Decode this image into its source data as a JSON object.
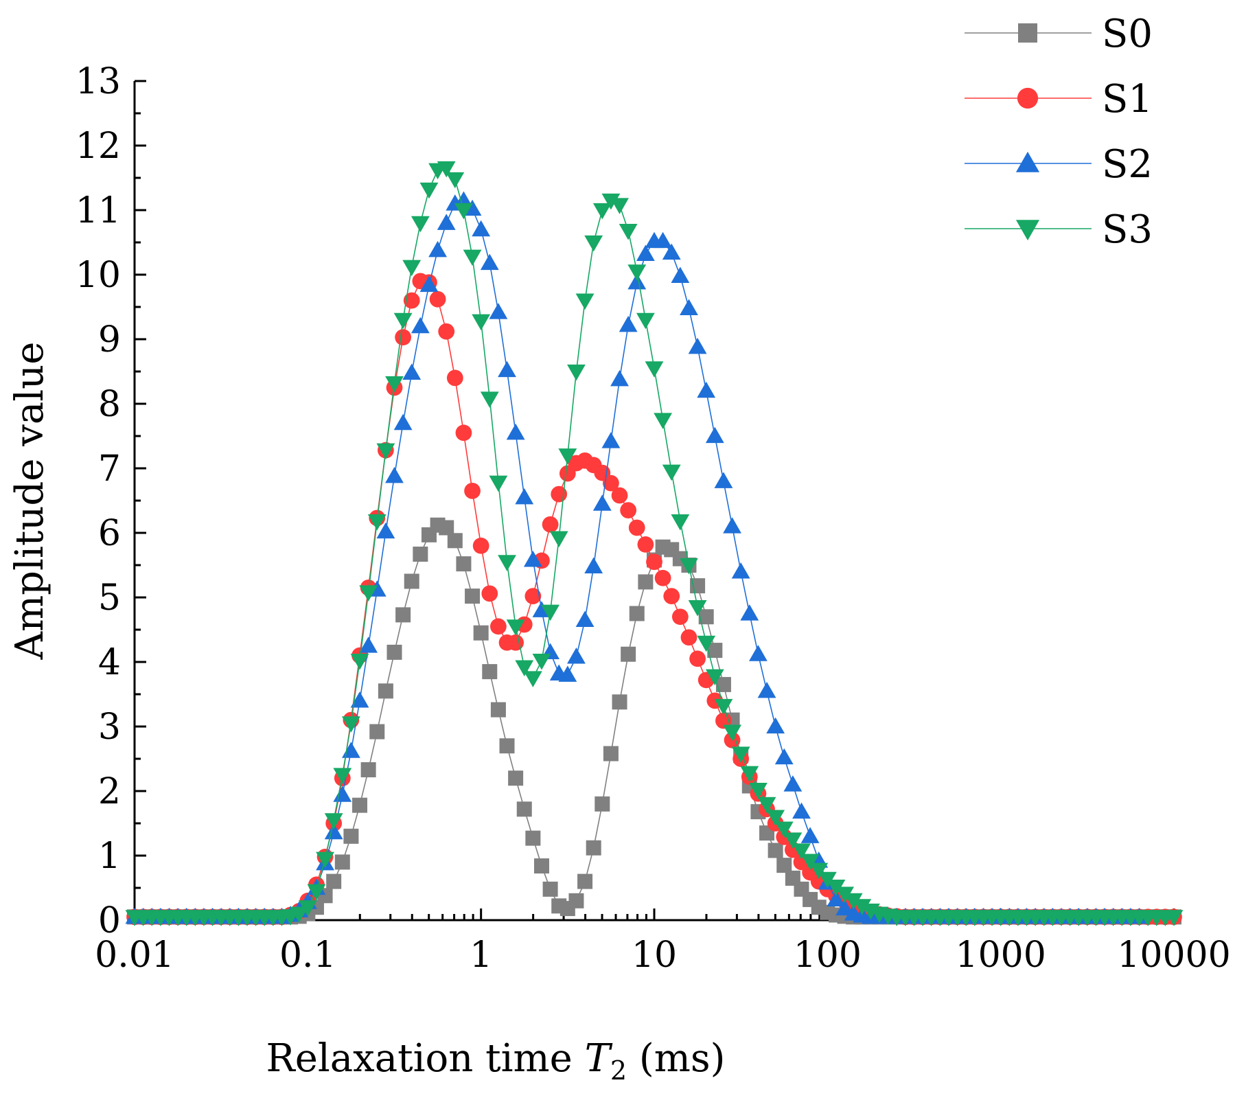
{
  "chart_data": {
    "type": "scatter",
    "x_scale": "log",
    "title": "",
    "xlabel": {
      "main": "Relaxation time ",
      "italic": "T",
      "subscript": "2",
      "unit": " (ms)"
    },
    "ylabel": "Amplitude value",
    "xlim": [
      0.01,
      10000
    ],
    "ylim": [
      0,
      13
    ],
    "x_ticks": [
      {
        "value": 0.01,
        "label": "0.01"
      },
      {
        "value": 0.1,
        "label": "0.1"
      },
      {
        "value": 1,
        "label": "1"
      },
      {
        "value": 10,
        "label": "10"
      },
      {
        "value": 100,
        "label": "100"
      },
      {
        "value": 1000,
        "label": "1000"
      },
      {
        "value": 10000,
        "label": "10000"
      }
    ],
    "y_ticks": [
      {
        "value": 0,
        "label": "0"
      },
      {
        "value": 1,
        "label": "1"
      },
      {
        "value": 2,
        "label": "2"
      },
      {
        "value": 3,
        "label": "3"
      },
      {
        "value": 4,
        "label": "4"
      },
      {
        "value": 5,
        "label": "5"
      },
      {
        "value": 6,
        "label": "6"
      },
      {
        "value": 7,
        "label": "7"
      },
      {
        "value": 8,
        "label": "8"
      },
      {
        "value": 9,
        "label": "9"
      },
      {
        "value": 10,
        "label": "10"
      },
      {
        "value": 11,
        "label": "11"
      },
      {
        "value": 12,
        "label": "12"
      },
      {
        "value": 13,
        "label": "13"
      }
    ],
    "grid": false,
    "legend_position": "top-right",
    "x_log_start": -2,
    "x_log_step": 0.05,
    "series": [
      {
        "name": "S0",
        "color": "#808080",
        "marker": "square",
        "values": [
          0.05,
          0.05,
          0.05,
          0.05,
          0.05,
          0.05,
          0.05,
          0.05,
          0.05,
          0.05,
          0.05,
          0.05,
          0.05,
          0.05,
          0.05,
          0.05,
          0.05,
          0.05,
          0.05,
          0.06,
          0.1,
          0.2,
          0.38,
          0.6,
          0.9,
          1.3,
          1.78,
          2.33,
          2.92,
          3.55,
          4.15,
          4.73,
          5.25,
          5.67,
          5.97,
          6.12,
          6.08,
          5.88,
          5.52,
          5.02,
          4.45,
          3.85,
          3.26,
          2.7,
          2.2,
          1.72,
          1.27,
          0.84,
          0.48,
          0.22,
          0.18,
          0.3,
          0.6,
          1.12,
          1.8,
          2.58,
          3.38,
          4.12,
          4.75,
          5.24,
          5.58,
          5.78,
          5.74,
          5.6,
          5.5,
          5.18,
          4.7,
          4.18,
          3.65,
          3.1,
          2.55,
          2.08,
          1.68,
          1.35,
          1.08,
          0.85,
          0.65,
          0.48,
          0.32,
          0.2,
          0.12,
          0.08,
          0.06,
          0.05,
          0.05,
          0.05,
          0.05,
          0.05,
          0.05,
          0.05,
          0.05,
          0.05,
          0.05,
          0.05,
          0.05,
          0.05,
          0.05,
          0.05,
          0.05,
          0.05,
          0.05,
          0.05,
          0.05,
          0.05,
          0.05,
          0.05,
          0.05,
          0.05,
          0.05,
          0.05,
          0.05,
          0.05,
          0.05,
          0.05,
          0.05,
          0.05,
          0.05,
          0.05,
          0.05,
          0.05,
          0.05
        ]
      },
      {
        "name": "S1",
        "color": "#ff3b3b",
        "marker": "circle",
        "values": [
          0.05,
          0.05,
          0.05,
          0.05,
          0.05,
          0.05,
          0.05,
          0.05,
          0.05,
          0.05,
          0.05,
          0.05,
          0.05,
          0.05,
          0.05,
          0.05,
          0.05,
          0.05,
          0.08,
          0.14,
          0.3,
          0.55,
          0.98,
          1.5,
          2.2,
          3.1,
          4.1,
          5.15,
          6.23,
          7.28,
          8.25,
          9.03,
          9.6,
          9.9,
          9.88,
          9.62,
          9.12,
          8.4,
          7.55,
          6.65,
          5.8,
          5.06,
          4.55,
          4.3,
          4.3,
          4.58,
          5.02,
          5.57,
          6.13,
          6.6,
          6.92,
          7.08,
          7.12,
          7.05,
          6.93,
          6.77,
          6.58,
          6.35,
          6.08,
          5.82,
          5.55,
          5.3,
          5.02,
          4.7,
          4.38,
          4.05,
          3.72,
          3.4,
          3.09,
          2.79,
          2.5,
          2.22,
          1.96,
          1.72,
          1.5,
          1.29,
          1.09,
          0.9,
          0.74,
          0.6,
          0.48,
          0.38,
          0.3,
          0.23,
          0.17,
          0.12,
          0.09,
          0.07,
          0.06,
          0.05,
          0.05,
          0.05,
          0.05,
          0.05,
          0.05,
          0.05,
          0.05,
          0.05,
          0.05,
          0.05,
          0.05,
          0.05,
          0.05,
          0.05,
          0.05,
          0.05,
          0.05,
          0.05,
          0.05,
          0.05,
          0.05,
          0.05,
          0.05,
          0.05,
          0.05,
          0.05,
          0.05,
          0.05,
          0.05,
          0.05,
          0.05
        ]
      },
      {
        "name": "S2",
        "color": "#1f6fd8",
        "marker": "triangle-up",
        "values": [
          0.05,
          0.05,
          0.05,
          0.05,
          0.05,
          0.05,
          0.05,
          0.05,
          0.05,
          0.05,
          0.05,
          0.05,
          0.05,
          0.05,
          0.05,
          0.05,
          0.05,
          0.05,
          0.08,
          0.15,
          0.28,
          0.5,
          0.88,
          1.36,
          1.94,
          2.62,
          3.4,
          4.25,
          5.12,
          6.02,
          6.88,
          7.7,
          8.48,
          9.2,
          9.84,
          10.38,
          10.8,
          11.1,
          11.15,
          11.02,
          10.7,
          10.18,
          9.42,
          8.52,
          7.55,
          6.55,
          5.58,
          4.8,
          4.15,
          3.82,
          3.8,
          4.08,
          4.65,
          5.48,
          6.45,
          7.42,
          8.38,
          9.22,
          9.88,
          10.32,
          10.52,
          10.52,
          10.34,
          9.98,
          9.48,
          8.88,
          8.2,
          7.5,
          6.8,
          6.1,
          5.4,
          4.75,
          4.12,
          3.55,
          3.0,
          2.52,
          2.1,
          1.68,
          1.3,
          0.92,
          0.58,
          0.32,
          0.18,
          0.1,
          0.07,
          0.05,
          0.05,
          0.05,
          0.05,
          0.05,
          0.05,
          0.05,
          0.05,
          0.05,
          0.05,
          0.05,
          0.05,
          0.05,
          0.05,
          0.05,
          0.05,
          0.05,
          0.05,
          0.05,
          0.05,
          0.05,
          0.05,
          0.05,
          0.05,
          0.05,
          0.05,
          0.05,
          0.05,
          0.05,
          0.05,
          0.05,
          0.05
        ]
      },
      {
        "name": "S3",
        "color": "#16a864",
        "marker": "triangle-down",
        "values": [
          0.05,
          0.05,
          0.05,
          0.05,
          0.05,
          0.05,
          0.05,
          0.05,
          0.05,
          0.05,
          0.05,
          0.05,
          0.05,
          0.05,
          0.05,
          0.05,
          0.05,
          0.05,
          0.06,
          0.1,
          0.2,
          0.45,
          0.95,
          1.55,
          2.25,
          3.05,
          4.02,
          5.08,
          6.18,
          7.28,
          8.32,
          9.3,
          10.12,
          10.8,
          11.32,
          11.62,
          11.65,
          11.48,
          11.0,
          10.28,
          9.28,
          8.08,
          6.78,
          5.55,
          4.55,
          3.92,
          3.75,
          4.02,
          4.78,
          5.92,
          7.2,
          8.5,
          9.6,
          10.5,
          11.0,
          11.15,
          11.08,
          10.68,
          10.05,
          9.3,
          8.55,
          7.75,
          6.95,
          6.18,
          5.5,
          4.85,
          4.3,
          3.78,
          3.32,
          2.92,
          2.58,
          2.28,
          2.02,
          1.8,
          1.6,
          1.42,
          1.25,
          1.08,
          0.92,
          0.78,
          0.64,
          0.52,
          0.41,
          0.31,
          0.22,
          0.15,
          0.1,
          0.07,
          0.05,
          0.05,
          0.05,
          0.05,
          0.05,
          0.05,
          0.05,
          0.05,
          0.05,
          0.05,
          0.05,
          0.05,
          0.05,
          0.05,
          0.05,
          0.05,
          0.05,
          0.05,
          0.05,
          0.05,
          0.05,
          0.05,
          0.05,
          0.05,
          0.05,
          0.05,
          0.05,
          0.05,
          0.05,
          0.05,
          0.05,
          0.05,
          0.05
        ]
      }
    ]
  }
}
